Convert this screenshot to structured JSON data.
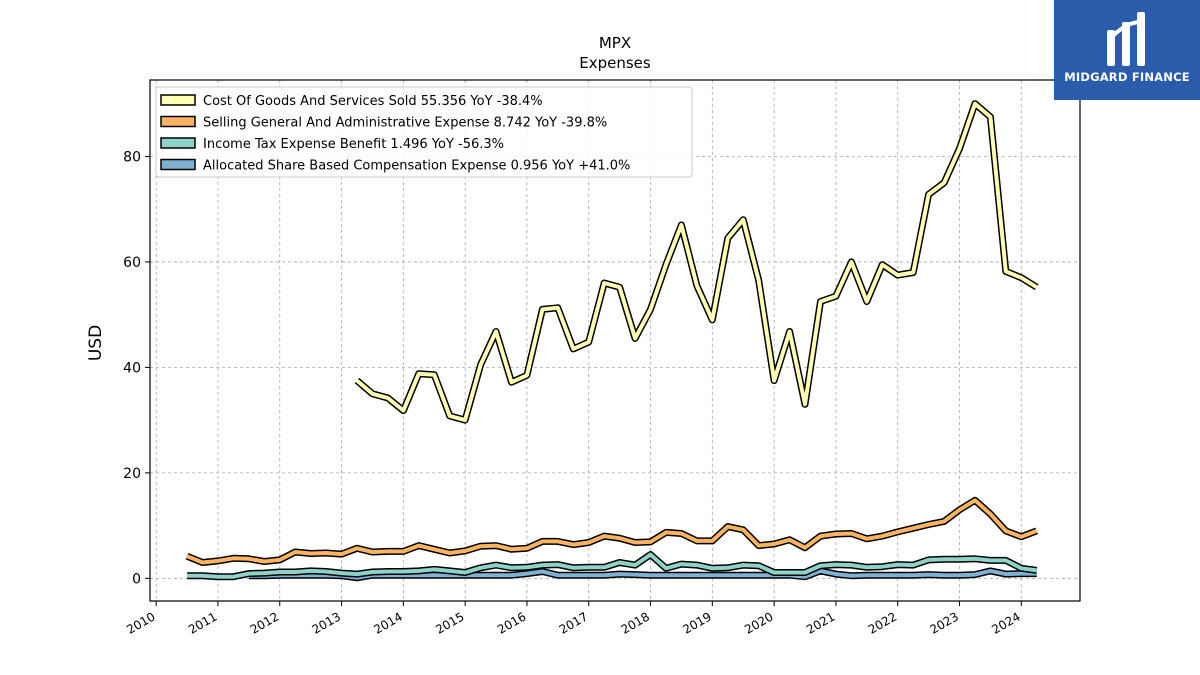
{
  "brand": {
    "name": "MIDGARD FINANCE",
    "color": "#2b5bab"
  },
  "chart_data": {
    "type": "line",
    "title": "MPX",
    "subtitle": "Expenses",
    "xlabel": "",
    "ylabel": "USD",
    "xlim": [
      2009.9,
      2024.95
    ],
    "ylim": [
      -4.3,
      94.5
    ],
    "yticks": [
      0,
      20,
      40,
      60,
      80
    ],
    "xticks": [
      2010,
      2011,
      2012,
      2013,
      2014,
      2015,
      2016,
      2017,
      2018,
      2019,
      2020,
      2021,
      2022,
      2023,
      2024
    ],
    "grid": true,
    "legend_position": "top-left",
    "series": [
      {
        "name": "Cost Of Goods And Services Sold",
        "legend": "Cost Of Goods And Services Sold  55.356 YoY -38.4%",
        "color": "#ffffb3",
        "x": [
          2013.25,
          2013.5,
          2013.75,
          2014.0,
          2014.25,
          2014.5,
          2014.75,
          2015.0,
          2015.25,
          2015.5,
          2015.75,
          2016.0,
          2016.25,
          2016.5,
          2016.75,
          2017.0,
          2017.25,
          2017.5,
          2017.75,
          2018.0,
          2018.25,
          2018.5,
          2018.75,
          2019.0,
          2019.25,
          2019.5,
          2019.75,
          2020.0,
          2020.25,
          2020.5,
          2020.75,
          2021.0,
          2021.25,
          2021.5,
          2021.75,
          2022.0,
          2022.25,
          2022.5,
          2022.75,
          2023.0,
          2023.25,
          2023.5,
          2023.75,
          2024.0,
          2024.25
        ],
        "y": [
          37.5,
          35.0,
          34.2,
          31.8,
          38.8,
          38.6,
          30.8,
          30.0,
          40.5,
          46.8,
          37.2,
          38.5,
          51.0,
          51.3,
          43.5,
          44.8,
          56.0,
          55.2,
          45.5,
          51.0,
          59.5,
          67.0,
          55.5,
          49.0,
          64.5,
          68.0,
          56.5,
          37.5,
          46.8,
          33.0,
          52.5,
          53.5,
          60.0,
          52.5,
          59.5,
          57.5,
          58.0,
          72.8,
          75.0,
          81.5,
          90.0,
          87.5,
          58.2,
          57.0,
          55.2
        ]
      },
      {
        "name": "Selling General And Administrative Expense",
        "legend": "Selling General And Administrative Expense  8.742 YoY -39.8%",
        "color": "#fdb462",
        "x": [
          2010.5,
          2010.75,
          2011.0,
          2011.25,
          2011.5,
          2011.75,
          2012.0,
          2012.25,
          2012.5,
          2012.75,
          2013.0,
          2013.25,
          2013.5,
          2013.75,
          2014.0,
          2014.25,
          2014.5,
          2014.75,
          2015.0,
          2015.25,
          2015.5,
          2015.75,
          2016.0,
          2016.25,
          2016.5,
          2016.75,
          2017.0,
          2017.25,
          2017.5,
          2017.75,
          2018.0,
          2018.25,
          2018.5,
          2018.75,
          2019.0,
          2019.25,
          2019.5,
          2019.75,
          2020.0,
          2020.25,
          2020.5,
          2020.75,
          2021.0,
          2021.25,
          2021.5,
          2021.75,
          2022.0,
          2022.25,
          2022.5,
          2022.75,
          2023.0,
          2023.25,
          2023.5,
          2023.75,
          2024.0,
          2024.25
        ],
        "y": [
          4.2,
          3.0,
          3.3,
          3.8,
          3.7,
          3.2,
          3.5,
          5.0,
          4.7,
          4.8,
          4.6,
          5.7,
          5.0,
          5.1,
          5.1,
          6.2,
          5.5,
          4.8,
          5.2,
          6.1,
          6.2,
          5.5,
          5.7,
          7.0,
          7.0,
          6.4,
          6.8,
          8.0,
          7.6,
          6.8,
          6.9,
          8.7,
          8.5,
          7.1,
          7.1,
          9.8,
          9.2,
          6.2,
          6.5,
          7.3,
          5.8,
          8.0,
          8.4,
          8.5,
          7.5,
          8.0,
          8.8,
          9.5,
          10.2,
          10.8,
          13.0,
          14.8,
          12.2,
          9.0,
          7.9,
          9.0
        ]
      },
      {
        "name": "Income Tax Expense Benefit",
        "legend": "Income Tax Expense Benefit  1.496 YoY -56.3%",
        "color": "#8dd3c7",
        "x": [
          2010.5,
          2010.75,
          2011.0,
          2011.25,
          2011.5,
          2011.75,
          2012.0,
          2012.25,
          2012.5,
          2012.75,
          2013.0,
          2013.25,
          2013.5,
          2013.75,
          2014.0,
          2014.25,
          2014.5,
          2014.75,
          2015.0,
          2015.25,
          2015.5,
          2015.75,
          2016.0,
          2016.25,
          2016.5,
          2016.75,
          2017.0,
          2017.25,
          2017.5,
          2017.75,
          2018.0,
          2018.25,
          2018.5,
          2018.75,
          2019.0,
          2019.25,
          2019.5,
          2019.75,
          2020.0,
          2020.25,
          2020.5,
          2020.75,
          2021.0,
          2021.25,
          2021.5,
          2021.75,
          2022.0,
          2022.25,
          2022.5,
          2022.75,
          2023.0,
          2023.25,
          2023.5,
          2023.75,
          2024.0,
          2024.25
        ],
        "y": [
          0.5,
          0.5,
          0.3,
          0.3,
          0.9,
          1.0,
          1.2,
          1.2,
          1.4,
          1.3,
          1.0,
          0.8,
          1.2,
          1.3,
          1.3,
          1.4,
          1.7,
          1.4,
          1.1,
          2.0,
          2.5,
          2.0,
          2.1,
          2.5,
          2.6,
          2.0,
          2.1,
          2.1,
          3.0,
          2.5,
          4.5,
          1.9,
          2.7,
          2.5,
          1.9,
          2.0,
          2.5,
          2.4,
          1.1,
          1.1,
          1.1,
          2.4,
          2.6,
          2.5,
          2.1,
          2.2,
          2.6,
          2.5,
          3.5,
          3.6,
          3.6,
          3.7,
          3.4,
          3.4,
          1.9,
          1.5
        ]
      },
      {
        "name": "Allocated Share Based Compensation Expense",
        "legend": "Allocated Share Based Compensation Expense  0.956 YoY +41.0%",
        "color": "#80b1d3",
        "x": [
          2011.5,
          2011.75,
          2012.0,
          2012.25,
          2012.5,
          2012.75,
          2013.0,
          2013.25,
          2013.5,
          2013.75,
          2014.0,
          2014.25,
          2014.5,
          2014.75,
          2015.0,
          2015.25,
          2015.5,
          2015.75,
          2016.0,
          2016.25,
          2016.5,
          2016.75,
          2017.0,
          2017.25,
          2017.5,
          2017.75,
          2018.0,
          2018.25,
          2018.5,
          2018.75,
          2019.0,
          2019.25,
          2019.5,
          2019.75,
          2020.0,
          2020.25,
          2020.5,
          2020.75,
          2021.0,
          2021.25,
          2021.5,
          2021.75,
          2022.0,
          2022.25,
          2022.5,
          2022.75,
          2023.0,
          2023.25,
          2023.5,
          2023.75,
          2024.0,
          2024.25
        ],
        "y": [
          0.5,
          0.5,
          0.6,
          0.6,
          0.6,
          0.6,
          0.5,
          0.1,
          0.6,
          0.6,
          0.6,
          0.6,
          0.6,
          0.6,
          0.6,
          0.6,
          0.6,
          0.6,
          0.9,
          1.3,
          0.6,
          0.6,
          0.6,
          0.6,
          0.8,
          0.7,
          0.6,
          0.6,
          0.6,
          0.6,
          0.6,
          0.6,
          0.6,
          0.6,
          0.6,
          0.6,
          0.3,
          1.4,
          0.8,
          0.5,
          0.6,
          0.6,
          0.6,
          0.6,
          0.7,
          0.6,
          0.6,
          0.7,
          1.4,
          0.8,
          0.9,
          0.9
        ]
      }
    ]
  }
}
